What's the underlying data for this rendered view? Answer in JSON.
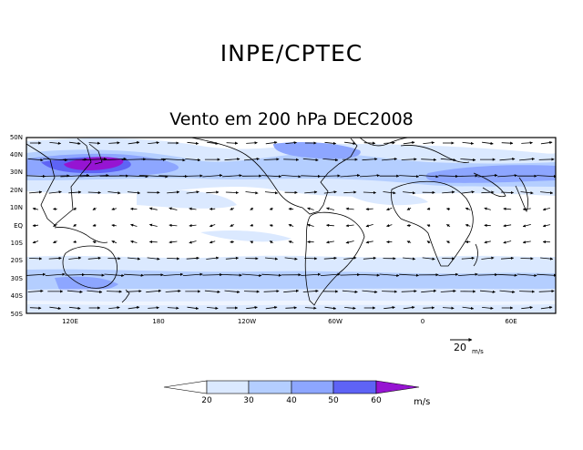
{
  "header": {
    "organization": "INPE/CPTEC",
    "title": "Vento em 200 hPa DEC2008"
  },
  "map": {
    "lat_labels": [
      "50N",
      "40N",
      "30N",
      "20N",
      "10N",
      "EQ",
      "10S",
      "20S",
      "30S",
      "40S",
      "50S"
    ],
    "lon_labels": [
      "120E",
      "180",
      "120W",
      "60W",
      "0",
      "60E"
    ]
  },
  "reference_vector": {
    "value": "20",
    "unit": "m/s"
  },
  "colorbar": {
    "ticks": [
      "20",
      "30",
      "40",
      "50",
      "60"
    ],
    "unit": "m/s",
    "colors": [
      "#ffffff",
      "#dbe9ff",
      "#b4ceff",
      "#8da6ff",
      "#5e63f5",
      "#9614d2"
    ]
  },
  "colors": {
    "background": "#ffffff",
    "land_outline": "#000000",
    "vectors": "#000000"
  }
}
